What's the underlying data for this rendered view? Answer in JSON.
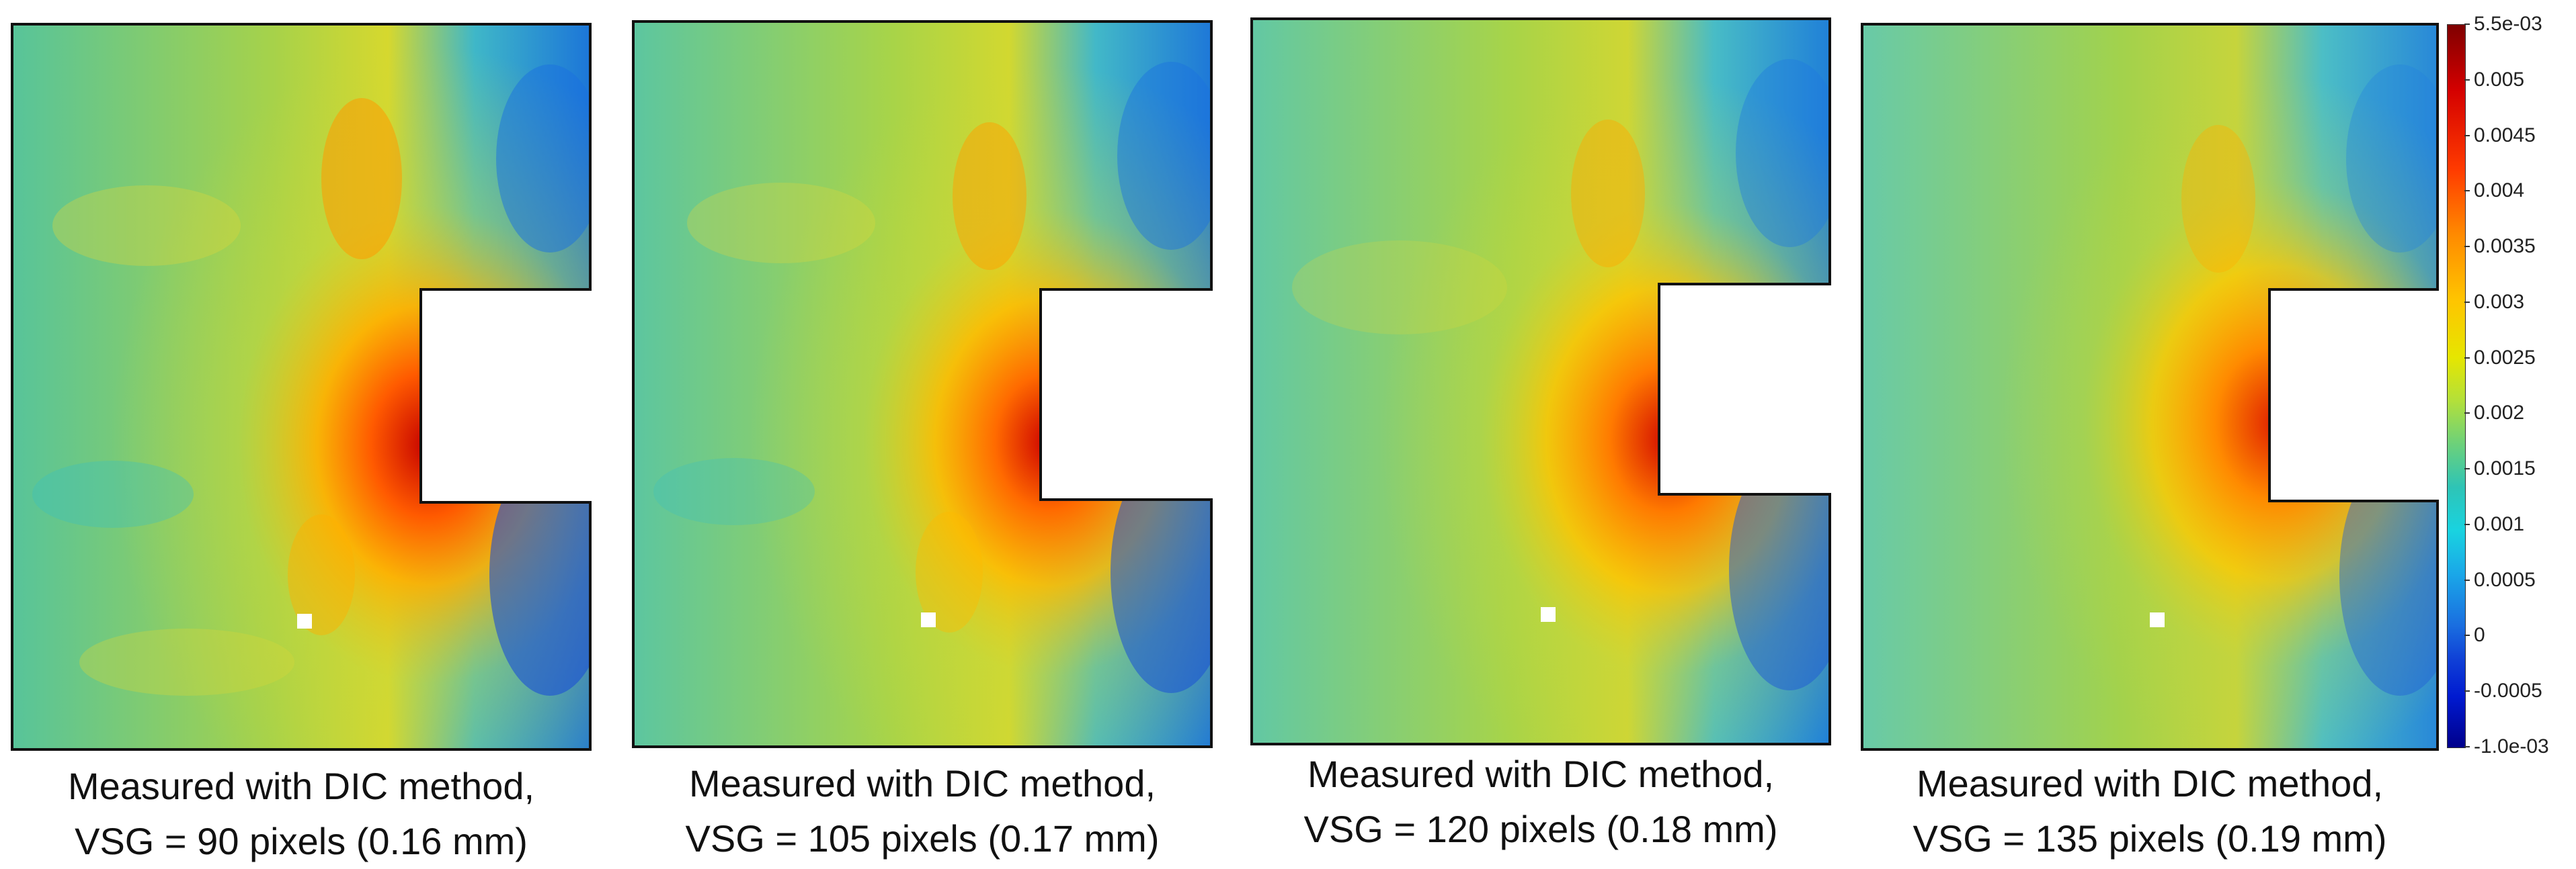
{
  "panels": [
    {
      "caption_line1": "Measured with DIC method,",
      "caption_line2": "VSG = 90 pixels (0.16 mm)"
    },
    {
      "caption_line1": "Measured with DIC method,",
      "caption_line2": "VSG = 105 pixels (0.17 mm)"
    },
    {
      "caption_line1": "Measured with DIC method,",
      "caption_line2": "VSG = 120 pixels (0.18 mm)"
    },
    {
      "caption_line1": "Measured with DIC method,",
      "caption_line2": "VSG = 135 pixels (0.19 mm)"
    }
  ],
  "colorbar": {
    "ticks": [
      "5.5e-03",
      "0.005",
      "0.0045",
      "0.004",
      "0.0035",
      "0.003",
      "0.0025",
      "0.002",
      "0.0015",
      "0.001",
      "0.0005",
      "0",
      "-0.0005",
      "-1.0e-03"
    ],
    "colors": {
      "max": "#7f0000",
      "high": "#ff3b00",
      "mid_high": "#ffc400",
      "mid": "#b3e03a",
      "mid_low": "#2ec4b6",
      "low": "#1a6fe0",
      "min": "#00008b"
    }
  }
}
